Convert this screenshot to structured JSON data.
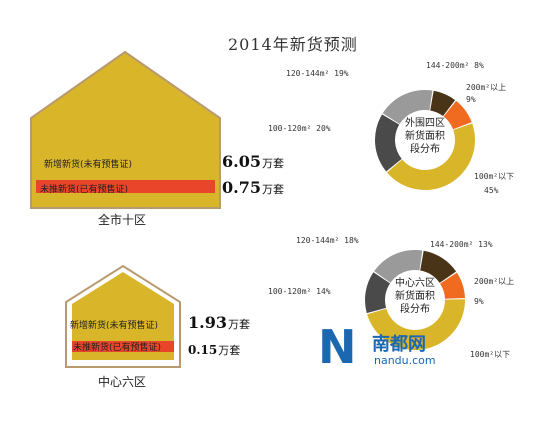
{
  "title": "2014年新货预测",
  "city": {
    "label": "全市十区",
    "new_supply_label": "新增新货(未有预售证)",
    "new_supply_value": "6.05",
    "unsold_label": "未推新货(已有预售证)",
    "unsold_value": "0.75",
    "unit": "万套"
  },
  "center": {
    "label": "中心六区",
    "new_supply_label": "新增新货(未有预售证)",
    "new_supply_value": "1.93",
    "unsold_label": "未推新货(已有预售证)",
    "unsold_value": "0.15",
    "unit": "万套"
  },
  "watermark": {
    "mark": "N",
    "name": "南都网",
    "site": "nandu.com"
  },
  "colors": {
    "yellow": "#d9b52a",
    "red": "#e8452a",
    "orange": "#f06a20",
    "dark_brown": "#4a3417",
    "dark_gray": "#4a4a4a",
    "gray": "#9a9a9a",
    "house_border": "#b89a6e"
  },
  "chart_data": [
    {
      "type": "pie",
      "center_label": [
        "外围四区",
        "新货面积",
        "段分布"
      ],
      "slices": [
        {
          "label": "100m²以下",
          "value": 45,
          "color": "#d9b52a"
        },
        {
          "label": "100-120m² 20%",
          "value": 20,
          "color": "#4a4a4a"
        },
        {
          "label": "120-144m² 19%",
          "value": 19,
          "color": "#9a9a9a"
        },
        {
          "label": "144-200m² 8%",
          "value": 8,
          "color": "#4a3417"
        },
        {
          "label": "200m²以上",
          "value": 9,
          "color": "#f06a20"
        }
      ],
      "labels_text": {
        "s120": "120-144m² 19%",
        "s144": "144-200m² 8%",
        "s200a": "200m²以上",
        "s200b": "9%",
        "s100a": "100-120m² 20%",
        "s100ua": "100m²以下",
        "s100ub": "45%"
      }
    },
    {
      "type": "pie",
      "center_label": [
        "中心六区",
        "新货面积",
        "段分布"
      ],
      "slices": [
        {
          "label": "100m²以下",
          "value": 46,
          "color": "#d9b52a"
        },
        {
          "label": "100-120m² 14%",
          "value": 14,
          "color": "#4a4a4a"
        },
        {
          "label": "120-144m² 18%",
          "value": 18,
          "color": "#9a9a9a"
        },
        {
          "label": "144-200m² 13%",
          "value": 13,
          "color": "#4a3417"
        },
        {
          "label": "200m²以上",
          "value": 9,
          "color": "#f06a20"
        }
      ],
      "labels_text": {
        "s120": "120-144m² 18%",
        "s144": "144-200m² 13%",
        "s200a": "200m²以上",
        "s200b": "9%",
        "s100a": "100-120m² 14%",
        "s100ua": "100m²以下"
      }
    }
  ]
}
